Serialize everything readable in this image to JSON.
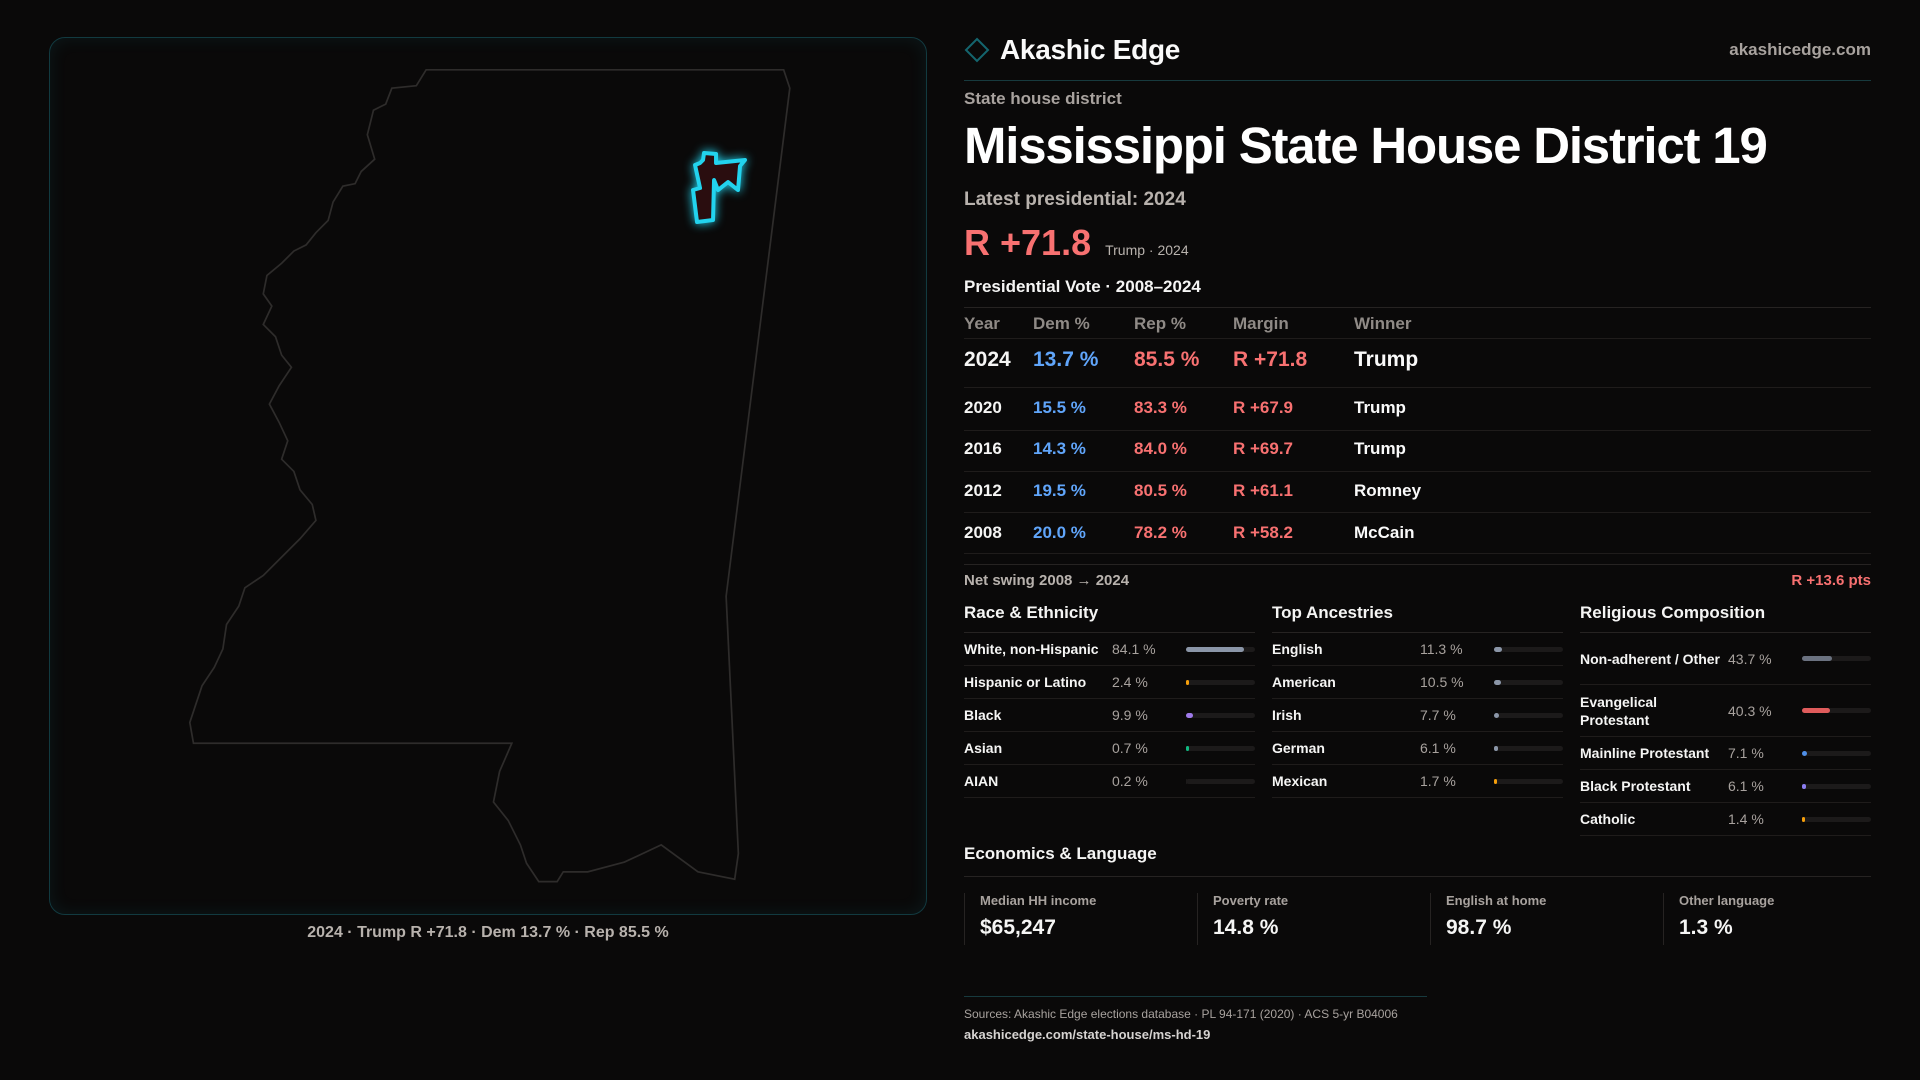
{
  "brand": {
    "name": "Akashic Edge",
    "site": "akashicedge.com",
    "accent": "#22d3ee"
  },
  "header": {
    "eyebrow": "State house district",
    "title": "Mississippi State House District 19",
    "latest": "Latest presidential: 2024",
    "margin": "R +71.8",
    "margin_sub": "Trump · 2024"
  },
  "map": {
    "state": "Mississippi",
    "caption": "2024 · Trump R +71.8 · Dem 13.7 % · Rep 85.5 %",
    "highlight_color": "#22d3ee"
  },
  "pres": {
    "title": "Presidential Vote · 2008–2024",
    "columns": [
      "Year",
      "Dem %",
      "Rep %",
      "Margin",
      "Winner"
    ],
    "rows": [
      [
        "2024",
        "13.7 %",
        "85.5 %",
        "R +71.8",
        "Trump"
      ],
      [
        "2020",
        "15.5 %",
        "83.3 %",
        "R +67.9",
        "Trump"
      ],
      [
        "2016",
        "14.3 %",
        "84.0 %",
        "R +69.7",
        "Trump"
      ],
      [
        "2012",
        "19.5 %",
        "80.5 %",
        "R +61.1",
        "Romney"
      ],
      [
        "2008",
        "20.0 %",
        "78.2 %",
        "R +58.2",
        "McCain"
      ]
    ],
    "swing_label": "Net swing 2008 → 2024",
    "swing_value": "R +13.6 pts"
  },
  "sections": [
    {
      "title": "Race & Ethnicity",
      "items": [
        {
          "label": "White, non-Hispanic",
          "value": "84.1 %",
          "pct": 84.1,
          "color": "#8b96a8"
        },
        {
          "label": "Hispanic or Latino",
          "value": "2.4 %",
          "pct": 2.4,
          "color": "#f59e0b"
        },
        {
          "label": "Black",
          "value": "9.9 %",
          "pct": 9.9,
          "color": "#9f7aea"
        },
        {
          "label": "Asian",
          "value": "0.7 %",
          "pct": 0.7,
          "color": "#10b981"
        },
        {
          "label": "AIAN",
          "value": "0.2 %",
          "pct": 0.2,
          "color": "#1c1a1a"
        }
      ]
    },
    {
      "title": "Top Ancestries",
      "items": [
        {
          "label": "English",
          "value": "11.3 %",
          "pct": 11.3,
          "color": "#8b96a8"
        },
        {
          "label": "American",
          "value": "10.5 %",
          "pct": 10.5,
          "color": "#8b96a8"
        },
        {
          "label": "Irish",
          "value": "7.7 %",
          "pct": 7.7,
          "color": "#8b96a8"
        },
        {
          "label": "German",
          "value": "6.1 %",
          "pct": 6.1,
          "color": "#8b96a8"
        },
        {
          "label": "Mexican",
          "value": "1.7 %",
          "pct": 1.7,
          "color": "#f59e0b"
        }
      ]
    },
    {
      "title": "Religious Composition",
      "items": [
        {
          "label": "Non-adherent / Other",
          "value": "43.7 %",
          "pct": 43.7,
          "color": "#6b7280"
        },
        {
          "label": "Evangelical Protestant",
          "value": "40.3 %",
          "pct": 40.3,
          "color": "#e05c5c"
        },
        {
          "label": "Mainline Protestant",
          "value": "7.1 %",
          "pct": 7.1,
          "color": "#4f8fe8"
        },
        {
          "label": "Black Protestant",
          "value": "6.1 %",
          "pct": 6.1,
          "color": "#8b7cf0"
        },
        {
          "label": "Catholic",
          "value": "1.4 %",
          "pct": 1.4,
          "color": "#f59e0b"
        }
      ]
    }
  ],
  "econ": {
    "title": "Economics & Language",
    "cards": [
      {
        "label": "Median HH income",
        "value": "$65,247"
      },
      {
        "label": "Poverty rate",
        "value": "14.8 %"
      },
      {
        "label": "English at home",
        "value": "98.7 %"
      },
      {
        "label": "Other language",
        "value": "1.3 %"
      }
    ]
  },
  "footer": {
    "sources": "Sources: Akashic Edge elections database · PL 94-171 (2020) · ACS 5-yr B04006",
    "url": "akashicedge.com/state-house/ms-hd-19"
  }
}
